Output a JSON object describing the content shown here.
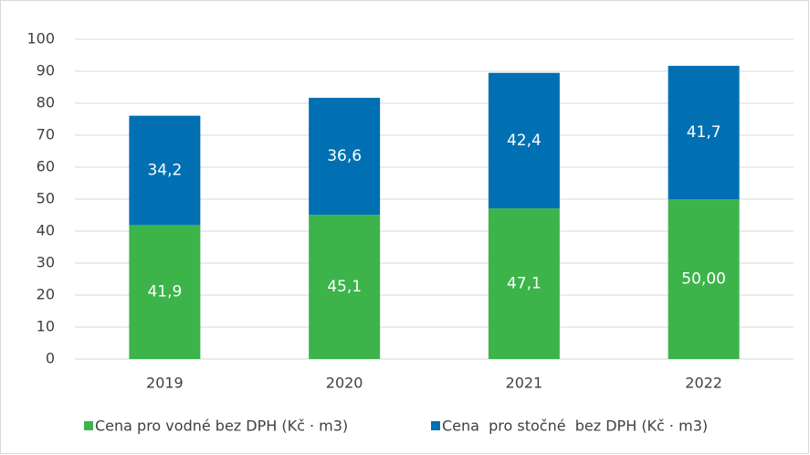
{
  "chart_data": {
    "type": "stacked_bar",
    "categories": [
      "2019",
      "2020",
      "2021",
      "2022"
    ],
    "series": [
      {
        "name": "Cena pro vodné bez DPH (Kč · m3)",
        "color": "#3cb44a",
        "values": [
          41.9,
          45.1,
          47.1,
          50
        ],
        "value_labels": [
          "41,9",
          "45,1",
          "47,1",
          "50,00"
        ]
      },
      {
        "name": "Cena  pro stočné  bez DPH (Kč · m3)",
        "color": "#0070b3",
        "values": [
          34.2,
          36.6,
          42.4,
          41.7
        ],
        "value_labels": [
          "34,2",
          "36,6",
          "42,4",
          "41,7"
        ]
      }
    ],
    "ylim": [
      0,
      100
    ],
    "yticks": [
      0,
      10,
      20,
      30,
      40,
      50,
      60,
      70,
      80,
      90,
      100
    ],
    "grid": true
  }
}
